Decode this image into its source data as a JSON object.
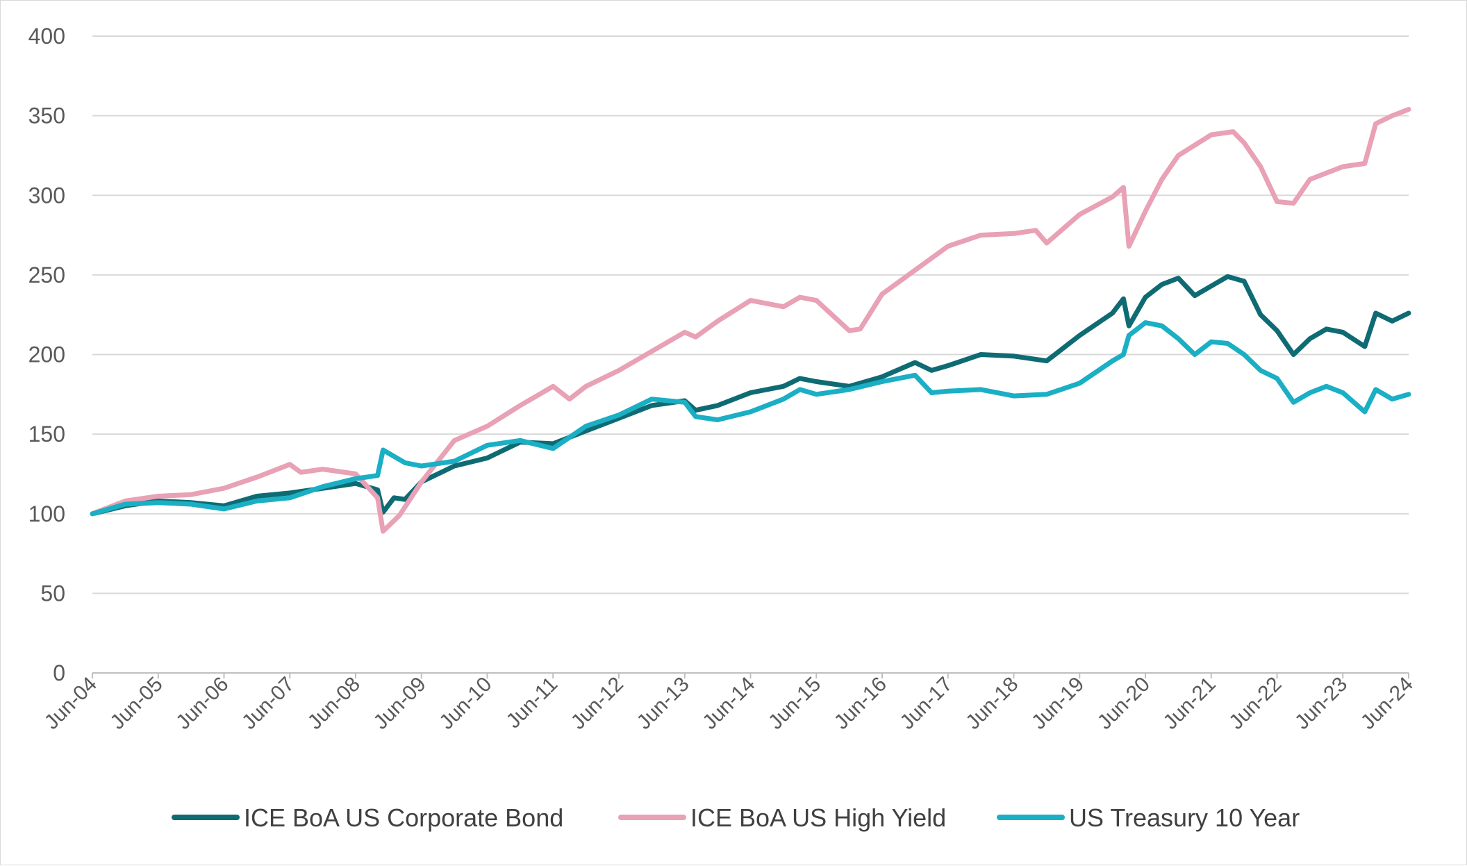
{
  "chart_data": {
    "type": "line",
    "title": "",
    "xlabel": "",
    "ylabel": "",
    "ylim": [
      0,
      400
    ],
    "yticks": [
      0,
      50,
      100,
      150,
      200,
      250,
      300,
      350,
      400
    ],
    "grid": true,
    "legend_position": "bottom",
    "xticks": [
      "Jun-04",
      "Jun-05",
      "Jun-06",
      "Jun-07",
      "Jun-08",
      "Jun-09",
      "Jun-10",
      "Jun-11",
      "Jun-12",
      "Jun-13",
      "Jun-14",
      "Jun-15",
      "Jun-16",
      "Jun-17",
      "Jun-18",
      "Jun-19",
      "Jun-20",
      "Jun-21",
      "Jun-22",
      "Jun-23",
      "Jun-24"
    ],
    "x_start": "Jun-04",
    "x_end": "Jun-24",
    "series": [
      {
        "name": "ICE BoA US Corporate Bond",
        "color": "#0f6b73",
        "points": [
          [
            "Jun-04",
            100
          ],
          [
            "Dec-04",
            105
          ],
          [
            "Jun-05",
            108
          ],
          [
            "Dec-05",
            107
          ],
          [
            "Jun-06",
            105
          ],
          [
            "Dec-06",
            111
          ],
          [
            "Jun-07",
            113
          ],
          [
            "Dec-07",
            116
          ],
          [
            "Jun-08",
            119
          ],
          [
            "Oct-08",
            115
          ],
          [
            "Nov-08",
            101
          ],
          [
            "Jan-09",
            110
          ],
          [
            "Mar-09",
            109
          ],
          [
            "Jun-09",
            120
          ],
          [
            "Dec-09",
            130
          ],
          [
            "Jun-10",
            135
          ],
          [
            "Dec-10",
            145
          ],
          [
            "Jun-11",
            144
          ],
          [
            "Dec-11",
            152
          ],
          [
            "Jun-12",
            160
          ],
          [
            "Dec-12",
            168
          ],
          [
            "Jun-13",
            171
          ],
          [
            "Aug-13",
            165
          ],
          [
            "Dec-13",
            168
          ],
          [
            "Jun-14",
            176
          ],
          [
            "Dec-14",
            180
          ],
          [
            "Mar-15",
            185
          ],
          [
            "Jun-15",
            183
          ],
          [
            "Dec-15",
            180
          ],
          [
            "Jun-16",
            186
          ],
          [
            "Dec-16",
            195
          ],
          [
            "Mar-17",
            190
          ],
          [
            "Jun-17",
            193
          ],
          [
            "Dec-17",
            200
          ],
          [
            "Jun-18",
            199
          ],
          [
            "Dec-18",
            196
          ],
          [
            "Jun-19",
            212
          ],
          [
            "Dec-19",
            226
          ],
          [
            "Feb-20",
            235
          ],
          [
            "Mar-20",
            218
          ],
          [
            "Jun-20",
            236
          ],
          [
            "Sep-20",
            244
          ],
          [
            "Dec-20",
            248
          ],
          [
            "Mar-21",
            237
          ],
          [
            "Jun-21",
            243
          ],
          [
            "Sep-21",
            249
          ],
          [
            "Dec-21",
            246
          ],
          [
            "Mar-22",
            225
          ],
          [
            "Jun-22",
            215
          ],
          [
            "Sep-22",
            200
          ],
          [
            "Dec-22",
            210
          ],
          [
            "Mar-23",
            216
          ],
          [
            "Jun-23",
            214
          ],
          [
            "Oct-23",
            205
          ],
          [
            "Dec-23",
            226
          ],
          [
            "Mar-24",
            221
          ],
          [
            "Jun-24",
            226
          ]
        ]
      },
      {
        "name": "ICE BoA US High Yield",
        "color": "#e8a1b5",
        "points": [
          [
            "Jun-04",
            100
          ],
          [
            "Dec-04",
            108
          ],
          [
            "Jun-05",
            111
          ],
          [
            "Dec-05",
            112
          ],
          [
            "Jun-06",
            116
          ],
          [
            "Dec-06",
            123
          ],
          [
            "Jun-07",
            131
          ],
          [
            "Aug-07",
            126
          ],
          [
            "Dec-07",
            128
          ],
          [
            "Jun-08",
            125
          ],
          [
            "Oct-08",
            110
          ],
          [
            "Nov-08",
            89
          ],
          [
            "Feb-09",
            99
          ],
          [
            "Jun-09",
            120
          ],
          [
            "Dec-09",
            146
          ],
          [
            "Jun-10",
            155
          ],
          [
            "Dec-10",
            168
          ],
          [
            "Jun-11",
            180
          ],
          [
            "Sep-11",
            172
          ],
          [
            "Dec-11",
            180
          ],
          [
            "Jun-12",
            190
          ],
          [
            "Dec-12",
            202
          ],
          [
            "Jun-13",
            214
          ],
          [
            "Aug-13",
            211
          ],
          [
            "Dec-13",
            221
          ],
          [
            "Jun-14",
            234
          ],
          [
            "Dec-14",
            230
          ],
          [
            "Mar-15",
            236
          ],
          [
            "Jun-15",
            234
          ],
          [
            "Dec-15",
            215
          ],
          [
            "Feb-16",
            216
          ],
          [
            "Jun-16",
            238
          ],
          [
            "Dec-16",
            253
          ],
          [
            "Jun-17",
            268
          ],
          [
            "Dec-17",
            275
          ],
          [
            "Jun-18",
            276
          ],
          [
            "Oct-18",
            278
          ],
          [
            "Dec-18",
            270
          ],
          [
            "Jun-19",
            288
          ],
          [
            "Dec-19",
            299
          ],
          [
            "Feb-20",
            305
          ],
          [
            "Mar-20",
            268
          ],
          [
            "Jun-20",
            290
          ],
          [
            "Sep-20",
            310
          ],
          [
            "Dec-20",
            325
          ],
          [
            "Jun-21",
            338
          ],
          [
            "Oct-21",
            340
          ],
          [
            "Dec-21",
            333
          ],
          [
            "Mar-22",
            318
          ],
          [
            "Jun-22",
            296
          ],
          [
            "Sep-22",
            295
          ],
          [
            "Dec-22",
            310
          ],
          [
            "Jun-23",
            318
          ],
          [
            "Oct-23",
            320
          ],
          [
            "Dec-23",
            345
          ],
          [
            "Mar-24",
            350
          ],
          [
            "Jun-24",
            354
          ]
        ]
      },
      {
        "name": "US Treasury 10 Year",
        "color": "#1aafc4",
        "points": [
          [
            "Jun-04",
            100
          ],
          [
            "Dec-04",
            106
          ],
          [
            "Jun-05",
            107
          ],
          [
            "Dec-05",
            106
          ],
          [
            "Jun-06",
            103
          ],
          [
            "Dec-06",
            108
          ],
          [
            "Jun-07",
            110
          ],
          [
            "Dec-07",
            117
          ],
          [
            "Jun-08",
            122
          ],
          [
            "Oct-08",
            124
          ],
          [
            "Nov-08",
            140
          ],
          [
            "Jan-09",
            136
          ],
          [
            "Mar-09",
            132
          ],
          [
            "Jun-09",
            130
          ],
          [
            "Dec-09",
            133
          ],
          [
            "Jun-10",
            143
          ],
          [
            "Dec-10",
            146
          ],
          [
            "Jun-11",
            141
          ],
          [
            "Dec-11",
            155
          ],
          [
            "Jun-12",
            162
          ],
          [
            "Dec-12",
            172
          ],
          [
            "Jun-13",
            170
          ],
          [
            "Aug-13",
            161
          ],
          [
            "Dec-13",
            159
          ],
          [
            "Jun-14",
            164
          ],
          [
            "Dec-14",
            172
          ],
          [
            "Mar-15",
            178
          ],
          [
            "Jun-15",
            175
          ],
          [
            "Dec-15",
            178
          ],
          [
            "Jun-16",
            183
          ],
          [
            "Dec-16",
            187
          ],
          [
            "Mar-17",
            176
          ],
          [
            "Jun-17",
            177
          ],
          [
            "Dec-17",
            178
          ],
          [
            "Jun-18",
            174
          ],
          [
            "Dec-18",
            175
          ],
          [
            "Jun-19",
            182
          ],
          [
            "Dec-19",
            196
          ],
          [
            "Feb-20",
            200
          ],
          [
            "Mar-20",
            212
          ],
          [
            "Jun-20",
            220
          ],
          [
            "Sep-20",
            218
          ],
          [
            "Dec-20",
            210
          ],
          [
            "Mar-21",
            200
          ],
          [
            "Jun-21",
            208
          ],
          [
            "Sep-21",
            207
          ],
          [
            "Dec-21",
            200
          ],
          [
            "Mar-22",
            190
          ],
          [
            "Jun-22",
            185
          ],
          [
            "Sep-22",
            170
          ],
          [
            "Dec-22",
            176
          ],
          [
            "Mar-23",
            180
          ],
          [
            "Jun-23",
            176
          ],
          [
            "Oct-23",
            164
          ],
          [
            "Dec-23",
            178
          ],
          [
            "Mar-24",
            172
          ],
          [
            "Jun-24",
            175
          ]
        ]
      }
    ]
  }
}
